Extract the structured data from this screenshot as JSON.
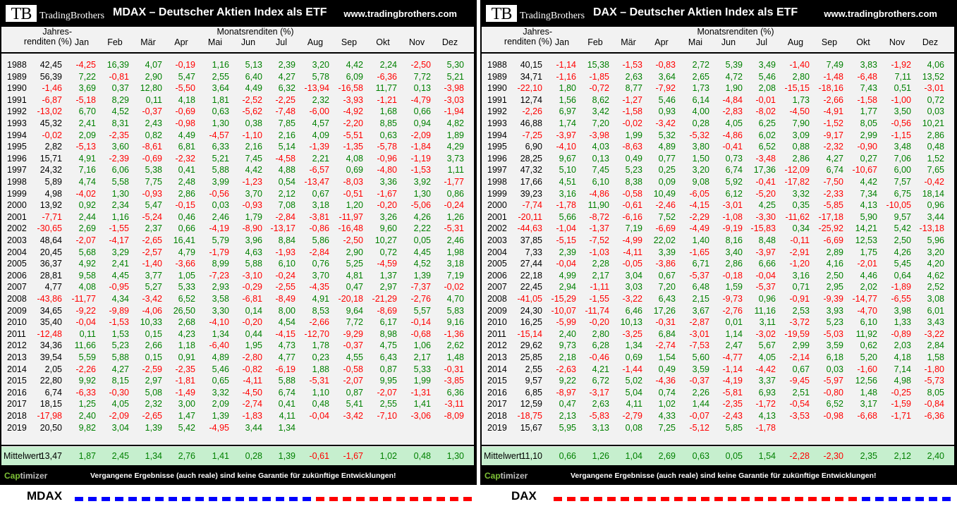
{
  "common": {
    "logo_letters": "TB",
    "logo_text": "TradingBrothers",
    "url": "www.tradingbrothers.com",
    "jahres_label_1": "Jahres-",
    "jahres_label_2": "renditen (%)",
    "monats_label": "Monatsrenditen (%)",
    "months": [
      "Jan",
      "Feb",
      "Mär",
      "Apr",
      "Mai",
      "Jun",
      "Jul",
      "Aug",
      "Sep",
      "Okt",
      "Nov",
      "Dez"
    ],
    "mittelwert_label": "Mittelwert",
    "cap_1": "Cap",
    "cap_2": "timizer",
    "disclaimer": "Vergangene Ergebnisse (auch reale) sind keine Garantie für zukünftige Entwicklungen!",
    "colors": {
      "positive": "#008000",
      "negative": "#ff0000",
      "mittelwert_bg": "#c6efce",
      "blue_dash": "#0000ff",
      "red_dash": "#ff0000"
    }
  },
  "legend": {
    "left_label": "MDAX",
    "right_label": "DAX"
  },
  "panels": [
    {
      "title": "MDAX – Deutscher Aktien Index  als ETF",
      "rows": [
        [
          "1988",
          "42,45",
          "-4,25",
          "16,39",
          "4,07",
          "-0,19",
          "1,16",
          "5,13",
          "2,39",
          "3,20",
          "4,42",
          "2,24",
          "-2,50",
          "5,30"
        ],
        [
          "1989",
          "56,39",
          "7,22",
          "-0,81",
          "2,90",
          "5,47",
          "2,55",
          "6,40",
          "4,27",
          "5,78",
          "6,09",
          "-6,36",
          "7,72",
          "5,21"
        ],
        [
          "1990",
          "-1,46",
          "3,69",
          "0,37",
          "12,80",
          "-5,50",
          "3,64",
          "4,49",
          "6,32",
          "-13,94",
          "-16,58",
          "11,77",
          "0,13",
          "-3,98"
        ],
        [
          "1991",
          "-6,87",
          "-5,18",
          "8,29",
          "0,11",
          "4,18",
          "1,81",
          "-2,52",
          "-2,25",
          "2,32",
          "-3,93",
          "-1,21",
          "-4,79",
          "-3,03"
        ],
        [
          "1992",
          "-13,02",
          "6,70",
          "4,52",
          "-0,37",
          "-0,69",
          "0,63",
          "-5,62",
          "-7,48",
          "-6,00",
          "-4,92",
          "1,68",
          "0,66",
          "-1,94"
        ],
        [
          "1993",
          "45,32",
          "2,41",
          "8,31",
          "2,43",
          "-0,98",
          "1,30",
          "0,38",
          "7,85",
          "4,57",
          "-2,20",
          "8,85",
          "0,94",
          "4,82"
        ],
        [
          "1994",
          "-0,02",
          "2,09",
          "-2,35",
          "0,82",
          "4,49",
          "-4,57",
          "-1,10",
          "2,16",
          "4,09",
          "-5,51",
          "0,63",
          "-2,09",
          "1,89"
        ],
        [
          "1995",
          "2,82",
          "-5,13",
          "3,60",
          "-8,61",
          "6,81",
          "6,33",
          "2,16",
          "5,14",
          "-1,39",
          "-1,35",
          "-5,78",
          "-1,84",
          "4,29"
        ],
        [
          "1996",
          "15,71",
          "4,91",
          "-2,39",
          "-0,69",
          "-2,32",
          "5,21",
          "7,45",
          "-4,58",
          "2,21",
          "4,08",
          "-0,96",
          "-1,19",
          "3,73"
        ],
        [
          "1997",
          "24,32",
          "7,16",
          "6,06",
          "5,38",
          "0,41",
          "5,88",
          "4,42",
          "4,88",
          "-6,57",
          "0,69",
          "-4,80",
          "-1,53",
          "1,11"
        ],
        [
          "1998",
          "5,89",
          "4,74",
          "5,58",
          "7,75",
          "2,48",
          "3,99",
          "-1,23",
          "0,54",
          "-13,47",
          "-8,03",
          "3,36",
          "3,92",
          "-1,77"
        ],
        [
          "1999",
          "4,98",
          "-4,02",
          "1,30",
          "-0,93",
          "2,86",
          "-0,56",
          "3,70",
          "2,12",
          "0,67",
          "-0,51",
          "-1,67",
          "1,30",
          "0,86"
        ],
        [
          "2000",
          "13,92",
          "0,92",
          "2,34",
          "5,47",
          "-0,15",
          "0,03",
          "-0,93",
          "7,08",
          "3,18",
          "1,20",
          "-0,20",
          "-5,06",
          "-0,24"
        ],
        [
          "2001",
          "-7,71",
          "2,44",
          "1,16",
          "-5,24",
          "0,46",
          "2,46",
          "1,79",
          "-2,84",
          "-3,81",
          "-11,97",
          "3,26",
          "4,26",
          "1,26"
        ],
        [
          "2002",
          "-30,65",
          "2,69",
          "-1,55",
          "2,37",
          "0,66",
          "-4,19",
          "-8,90",
          "-13,17",
          "-0,86",
          "-16,48",
          "9,60",
          "2,22",
          "-5,31"
        ],
        [
          "2003",
          "48,64",
          "-2,07",
          "-4,17",
          "-2,65",
          "16,41",
          "5,79",
          "3,96",
          "8,84",
          "5,86",
          "-2,50",
          "10,27",
          "0,05",
          "2,46"
        ],
        [
          "2004",
          "20,45",
          "5,68",
          "3,29",
          "-2,57",
          "4,79",
          "-1,79",
          "4,63",
          "-1,93",
          "-2,84",
          "2,90",
          "0,72",
          "4,45",
          "1,98"
        ],
        [
          "2005",
          "36,37",
          "4,92",
          "2,41",
          "-1,40",
          "-3,66",
          "8,99",
          "5,88",
          "6,10",
          "0,76",
          "5,25",
          "-4,59",
          "4,52",
          "3,18"
        ],
        [
          "2006",
          "28,81",
          "9,58",
          "4,45",
          "3,77",
          "1,05",
          "-7,23",
          "-3,10",
          "-0,24",
          "3,70",
          "4,81",
          "1,37",
          "1,39",
          "7,19"
        ],
        [
          "2007",
          "4,77",
          "4,08",
          "-0,95",
          "5,27",
          "5,33",
          "2,93",
          "-0,29",
          "-2,55",
          "-4,35",
          "0,47",
          "2,97",
          "-7,37",
          "-0,02"
        ],
        [
          "2008",
          "-43,86",
          "-11,77",
          "4,34",
          "-3,42",
          "6,52",
          "3,58",
          "-6,81",
          "-8,49",
          "4,91",
          "-20,18",
          "-21,29",
          "-2,76",
          "4,70"
        ],
        [
          "2009",
          "34,65",
          "-9,22",
          "-9,89",
          "-4,06",
          "26,50",
          "3,30",
          "0,14",
          "8,00",
          "8,53",
          "9,64",
          "-8,69",
          "5,57",
          "5,83"
        ],
        [
          "2010",
          "35,40",
          "-0,04",
          "-1,53",
          "10,33",
          "2,68",
          "-4,10",
          "-0,20",
          "4,54",
          "-2,66",
          "7,72",
          "6,17",
          "-0,14",
          "9,16"
        ],
        [
          "2011",
          "-12,48",
          "0,11",
          "1,53",
          "0,15",
          "4,23",
          "1,34",
          "0,44",
          "-4,15",
          "-12,70",
          "-9,29",
          "8,98",
          "-0,68",
          "-1,36"
        ],
        [
          "2012",
          "34,36",
          "11,66",
          "5,23",
          "2,66",
          "1,18",
          "-6,40",
          "1,95",
          "4,73",
          "1,78",
          "-0,37",
          "4,75",
          "1,06",
          "2,62"
        ],
        [
          "2013",
          "39,54",
          "5,59",
          "5,88",
          "0,15",
          "0,91",
          "4,89",
          "-2,80",
          "4,77",
          "0,23",
          "4,55",
          "6,43",
          "2,17",
          "1,48"
        ],
        [
          "2014",
          "2,05",
          "-2,26",
          "4,27",
          "-2,59",
          "-2,35",
          "5,46",
          "-0,82",
          "-6,19",
          "1,88",
          "-0,58",
          "0,87",
          "5,33",
          "-0,31"
        ],
        [
          "2015",
          "22,80",
          "9,92",
          "8,15",
          "2,97",
          "-1,81",
          "0,65",
          "-4,11",
          "5,88",
          "-5,31",
          "-2,07",
          "9,95",
          "1,99",
          "-3,85"
        ],
        [
          "2016",
          "6,74",
          "-6,33",
          "-0,30",
          "5,08",
          "-1,49",
          "3,32",
          "-4,50",
          "6,74",
          "1,10",
          "0,87",
          "-2,07",
          "-1,31",
          "6,36"
        ],
        [
          "2017",
          "18,15",
          "1,25",
          "4,05",
          "2,32",
          "3,00",
          "2,09",
          "-2,74",
          "0,41",
          "0,48",
          "5,41",
          "2,55",
          "1,41",
          "-3,11"
        ],
        [
          "2018",
          "-17,98",
          "2,40",
          "-2,09",
          "-2,65",
          "1,47",
          "1,39",
          "-1,83",
          "4,11",
          "-0,04",
          "-3,42",
          "-7,10",
          "-3,06",
          "-8,09"
        ],
        [
          "2019",
          "20,50",
          "9,82",
          "3,04",
          "1,39",
          "5,42",
          "-4,95",
          "3,44",
          "1,34",
          "",
          "",
          "",
          "",
          ""
        ]
      ],
      "mittelwert": [
        "13,47",
        "1,87",
        "2,45",
        "1,34",
        "2,76",
        "1,41",
        "0,28",
        "1,39",
        "-0,61",
        "-1,67",
        "1,02",
        "0,48",
        "1,30"
      ]
    },
    {
      "title": "DAX – Deutscher Aktien Index  als ETF",
      "rows": [
        [
          "1988",
          "40,15",
          "-1,14",
          "15,38",
          "-1,53",
          "-0,83",
          "2,72",
          "5,39",
          "3,49",
          "-1,40",
          "7,49",
          "3,83",
          "-1,92",
          "4,06"
        ],
        [
          "1989",
          "34,71",
          "-1,16",
          "-1,85",
          "2,63",
          "3,64",
          "2,65",
          "4,72",
          "5,46",
          "2,80",
          "-1,48",
          "-6,48",
          "7,11",
          "13,52"
        ],
        [
          "1990",
          "-22,10",
          "1,80",
          "-0,72",
          "8,77",
          "-7,92",
          "1,73",
          "1,90",
          "2,08",
          "-15,15",
          "-18,16",
          "7,43",
          "0,51",
          "-3,01"
        ],
        [
          "1991",
          "12,74",
          "1,56",
          "8,62",
          "-1,27",
          "5,46",
          "6,14",
          "-4,84",
          "-0,01",
          "1,73",
          "-2,66",
          "-1,58",
          "-1,00",
          "0,72"
        ],
        [
          "1992",
          "-2,26",
          "6,97",
          "3,42",
          "-1,58",
          "0,93",
          "4,00",
          "-2,83",
          "-8,02",
          "-4,50",
          "-4,91",
          "1,77",
          "3,50",
          "0,03"
        ],
        [
          "1993",
          "46,88",
          "1,74",
          "7,20",
          "-0,02",
          "-3,42",
          "0,28",
          "4,05",
          "6,25",
          "7,90",
          "-1,52",
          "8,05",
          "-0,56",
          "10,21"
        ],
        [
          "1994",
          "-7,25",
          "-3,97",
          "-3,98",
          "1,99",
          "5,32",
          "-5,32",
          "-4,86",
          "6,02",
          "3,09",
          "-9,17",
          "2,99",
          "-1,15",
          "2,86"
        ],
        [
          "1995",
          "6,90",
          "-4,10",
          "4,03",
          "-8,63",
          "4,89",
          "3,80",
          "-0,41",
          "6,52",
          "0,88",
          "-2,32",
          "-0,90",
          "3,48",
          "0,48"
        ],
        [
          "1996",
          "28,25",
          "9,67",
          "0,13",
          "0,49",
          "0,77",
          "1,50",
          "0,73",
          "-3,48",
          "2,86",
          "4,27",
          "0,27",
          "7,06",
          "1,52"
        ],
        [
          "1997",
          "47,32",
          "5,10",
          "7,45",
          "5,23",
          "0,25",
          "3,20",
          "6,74",
          "17,36",
          "-12,09",
          "6,74",
          "-10,67",
          "6,00",
          "7,65"
        ],
        [
          "1998",
          "17,66",
          "4,51",
          "6,10",
          "8,38",
          "0,09",
          "9,08",
          "5,92",
          "-0,41",
          "-17,82",
          "-7,50",
          "4,42",
          "7,57",
          "-0,42"
        ],
        [
          "1999",
          "39,23",
          "3,16",
          "-4,86",
          "-0,58",
          "10,49",
          "-6,05",
          "6,12",
          "-5,20",
          "3,32",
          "-2,33",
          "7,34",
          "6,75",
          "18,14"
        ],
        [
          "2000",
          "-7,74",
          "-1,78",
          "11,90",
          "-0,61",
          "-2,46",
          "-4,15",
          "-3,01",
          "4,25",
          "0,35",
          "-5,85",
          "4,13",
          "-10,05",
          "0,96"
        ],
        [
          "2001",
          "-20,11",
          "5,66",
          "-8,72",
          "-6,16",
          "7,52",
          "-2,29",
          "-1,08",
          "-3,30",
          "-11,62",
          "-17,18",
          "5,90",
          "9,57",
          "3,44"
        ],
        [
          "2002",
          "-44,63",
          "-1,04",
          "-1,37",
          "7,19",
          "-6,69",
          "-4,49",
          "-9,19",
          "-15,83",
          "0,34",
          "-25,92",
          "14,21",
          "5,42",
          "-13,18"
        ],
        [
          "2003",
          "37,85",
          "-5,15",
          "-7,52",
          "-4,99",
          "22,02",
          "1,40",
          "8,16",
          "8,48",
          "-0,11",
          "-6,69",
          "12,53",
          "2,50",
          "5,96"
        ],
        [
          "2004",
          "7,33",
          "2,39",
          "-1,03",
          "-4,11",
          "3,39",
          "-1,65",
          "3,40",
          "-3,97",
          "-2,91",
          "2,89",
          "1,75",
          "4,26",
          "3,20"
        ],
        [
          "2005",
          "27,44",
          "-0,04",
          "2,28",
          "-0,05",
          "-3,86",
          "6,71",
          "2,86",
          "6,66",
          "-1,20",
          "4,16",
          "-2,01",
          "5,45",
          "4,20"
        ],
        [
          "2006",
          "22,18",
          "4,99",
          "2,17",
          "3,04",
          "0,67",
          "-5,37",
          "-0,18",
          "-0,04",
          "3,16",
          "2,50",
          "4,46",
          "0,64",
          "4,62"
        ],
        [
          "2007",
          "22,45",
          "2,94",
          "-1,11",
          "3,03",
          "7,20",
          "6,48",
          "1,59",
          "-5,37",
          "0,71",
          "2,95",
          "2,02",
          "-1,89",
          "2,52"
        ],
        [
          "2008",
          "-41,05",
          "-15,29",
          "-1,55",
          "-3,22",
          "6,43",
          "2,15",
          "-9,73",
          "0,96",
          "-0,91",
          "-9,39",
          "-14,77",
          "-6,55",
          "3,08"
        ],
        [
          "2009",
          "24,30",
          "-10,07",
          "-11,74",
          "6,46",
          "17,26",
          "3,67",
          "-2,76",
          "11,16",
          "2,53",
          "3,93",
          "-4,70",
          "3,98",
          "6,01"
        ],
        [
          "2010",
          "16,25",
          "-5,99",
          "-0,20",
          "10,13",
          "-0,31",
          "-2,87",
          "0,01",
          "3,11",
          "-3,72",
          "5,23",
          "6,10",
          "1,33",
          "3,43"
        ],
        [
          "2011",
          "-15,14",
          "2,40",
          "2,80",
          "-3,25",
          "6,84",
          "-3,01",
          "1,14",
          "-3,02",
          "-19,59",
          "-5,03",
          "11,92",
          "-0,89",
          "-3,22"
        ],
        [
          "2012",
          "29,62",
          "9,73",
          "6,28",
          "1,34",
          "-2,74",
          "-7,53",
          "2,47",
          "5,67",
          "2,99",
          "3,59",
          "0,62",
          "2,03",
          "2,84"
        ],
        [
          "2013",
          "25,85",
          "2,18",
          "-0,46",
          "0,69",
          "1,54",
          "5,60",
          "-4,77",
          "4,05",
          "-2,14",
          "6,18",
          "5,20",
          "4,18",
          "1,58"
        ],
        [
          "2014",
          "2,55",
          "-2,63",
          "4,21",
          "-1,44",
          "0,49",
          "3,59",
          "-1,14",
          "-4,42",
          "0,67",
          "0,03",
          "-1,60",
          "7,14",
          "-1,80"
        ],
        [
          "2015",
          "9,57",
          "9,22",
          "6,72",
          "5,02",
          "-4,36",
          "-0,37",
          "-4,19",
          "3,37",
          "-9,45",
          "-5,97",
          "12,56",
          "4,98",
          "-5,73"
        ],
        [
          "2016",
          "6,85",
          "-8,97",
          "-3,17",
          "5,04",
          "0,74",
          "2,26",
          "-5,81",
          "6,93",
          "2,51",
          "-0,80",
          "1,48",
          "-0,25",
          "8,05"
        ],
        [
          "2017",
          "12,59",
          "0,47",
          "2,63",
          "4,11",
          "1,02",
          "1,44",
          "-2,35",
          "-1,72",
          "-0,54",
          "6,52",
          "3,17",
          "-1,59",
          "-0,84"
        ],
        [
          "2018",
          "-18,75",
          "2,13",
          "-5,83",
          "-2,79",
          "4,33",
          "-0,07",
          "-2,43",
          "4,13",
          "-3,53",
          "-0,98",
          "-6,68",
          "-1,71",
          "-6,36"
        ],
        [
          "2019",
          "15,67",
          "5,95",
          "3,13",
          "0,08",
          "7,25",
          "-5,12",
          "5,85",
          "-1,78",
          "",
          "",
          "",
          "",
          ""
        ]
      ],
      "mittelwert": [
        "11,10",
        "0,66",
        "1,26",
        "1,04",
        "2,69",
        "0,63",
        "0,05",
        "1,54",
        "-2,28",
        "-2,30",
        "2,35",
        "2,12",
        "2,40"
      ]
    }
  ]
}
